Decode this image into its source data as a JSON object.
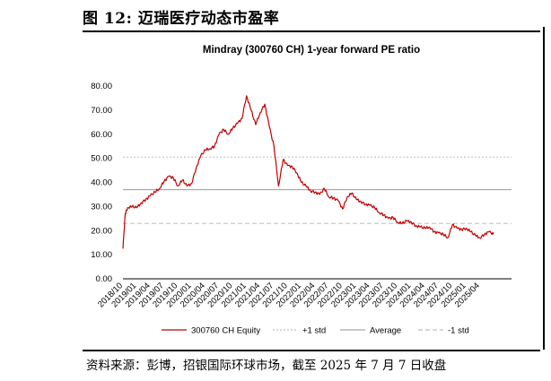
{
  "figure": {
    "title": "图 12: 迈瑞医疗动态市盈率",
    "source": "资料来源：彭博，招银国际环球市场，截至 2025 年 7 月 7 日收盘"
  },
  "colors": {
    "series": "#c00000",
    "plus_std": "#bfbfbf",
    "average": "#a6a6a6",
    "minus_std": "#bfbfbf",
    "axis": "#000000"
  },
  "chart_data": {
    "type": "line",
    "title": "Mindray (300760 CH) 1-year forward PE ratio",
    "xlabel": "",
    "ylabel": "",
    "ylim": [
      0,
      80
    ],
    "y_ticks": [
      "0.00",
      "10.00",
      "20.00",
      "30.00",
      "40.00",
      "50.00",
      "60.00",
      "70.00",
      "80.00"
    ],
    "x_ticks": [
      "2018/10",
      "2019/01",
      "2019/04",
      "2019/07",
      "2019/10",
      "2020/01",
      "2020/04",
      "2020/07",
      "2020/10",
      "2021/01",
      "2021/04",
      "2021/07",
      "2021/10",
      "2022/01",
      "2022/04",
      "2022/07",
      "2022/10",
      "2023/01",
      "2023/04",
      "2023/07",
      "2023/10",
      "2024/01",
      "2024/04",
      "2024/07",
      "2024/10",
      "2025/01",
      "2025/04"
    ],
    "grid": false,
    "legend_position": "bottom",
    "reference_lines": [
      {
        "name": "+1 std",
        "value": 50.5,
        "style": "dotted"
      },
      {
        "name": "Average",
        "value": 37.0,
        "style": "solid"
      },
      {
        "name": "-1 std",
        "value": 23.0,
        "style": "dashed"
      }
    ],
    "series": [
      {
        "name": "300760 CH Equity",
        "x": [
          "2018/10",
          "2018/10",
          "2018/11",
          "2018/12",
          "2019/01",
          "2019/02",
          "2019/03",
          "2019/04",
          "2019/05",
          "2019/06",
          "2019/07",
          "2019/08",
          "2019/09",
          "2019/10",
          "2019/11",
          "2019/12",
          "2020/01",
          "2020/02",
          "2020/03",
          "2020/04",
          "2020/05",
          "2020/06",
          "2020/07",
          "2020/08",
          "2020/09",
          "2020/10",
          "2020/11",
          "2020/12",
          "2021/01",
          "2021/02",
          "2021/03",
          "2021/04",
          "2021/05",
          "2021/06",
          "2021/07",
          "2021/08",
          "2021/09",
          "2021/10",
          "2021/11",
          "2021/12",
          "2022/01",
          "2022/02",
          "2022/03",
          "2022/04",
          "2022/05",
          "2022/06",
          "2022/07",
          "2022/08",
          "2022/09",
          "2022/10",
          "2022/11",
          "2022/12",
          "2023/01",
          "2023/02",
          "2023/03",
          "2023/04",
          "2023/05",
          "2023/06",
          "2023/07",
          "2023/08",
          "2023/09",
          "2023/10",
          "2023/11",
          "2023/12",
          "2024/01",
          "2024/02",
          "2024/03",
          "2024/04",
          "2024/05",
          "2024/06",
          "2024/07",
          "2024/08",
          "2024/09",
          "2024/10",
          "2024/11",
          "2024/12",
          "2025/01",
          "2025/02",
          "2025/03",
          "2025/04",
          "2025/05",
          "2025/06",
          "2025/07"
        ],
        "values": [
          12.5,
          27.0,
          29.5,
          30.0,
          29.5,
          31.5,
          33.0,
          34.5,
          36.0,
          37.5,
          40.5,
          42.5,
          42.0,
          38.5,
          41.0,
          38.5,
          39.5,
          46.0,
          51.0,
          53.5,
          54.0,
          55.0,
          60.0,
          62.0,
          60.0,
          62.5,
          64.5,
          66.5,
          76.0,
          70.0,
          64.0,
          69.0,
          72.5,
          63.0,
          55.0,
          38.5,
          49.5,
          47.0,
          46.5,
          44.0,
          40.0,
          38.5,
          36.5,
          36.0,
          35.0,
          37.5,
          34.0,
          33.5,
          32.5,
          29.0,
          34.0,
          35.5,
          33.0,
          32.0,
          31.0,
          30.5,
          29.5,
          27.5,
          26.5,
          25.0,
          25.5,
          23.5,
          23.0,
          24.0,
          23.5,
          22.0,
          21.5,
          21.0,
          21.5,
          19.5,
          19.0,
          18.5,
          17.0,
          22.5,
          21.0,
          20.5,
          21.0,
          19.5,
          18.0,
          17.0,
          18.5,
          19.5,
          18.5
        ]
      }
    ]
  }
}
